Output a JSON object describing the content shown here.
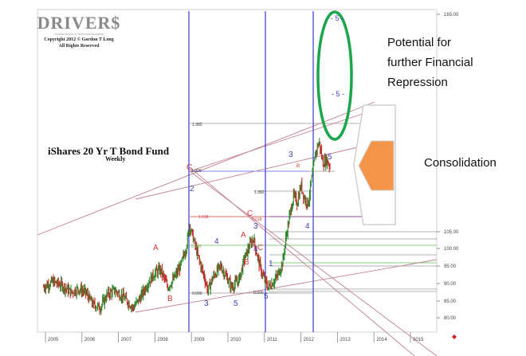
{
  "logo": {
    "title": "DRIVER$",
    "tagline": "Global Macro & Technical Analysis",
    "copyright": "Copyright 2012 © Gordon T Long",
    "rights": "All Rights Reserved"
  },
  "chart_data": {
    "type": "line",
    "title": "iShares 20 Yr T Bond Fund",
    "subtitle": "Weekly",
    "x_ticks": [
      "2005",
      "2006",
      "2007",
      "2008",
      "2009",
      "2010",
      "2011",
      "2012",
      "2013",
      "2014",
      "2015"
    ],
    "y_ticks": [
      "165.00",
      "105.00",
      "100.00",
      "95.00",
      "90.00",
      "85.00",
      "80.00"
    ],
    "y_tick_values": [
      165,
      105,
      100,
      95,
      90,
      85,
      80
    ],
    "ylim": [
      78,
      168
    ],
    "series": [
      {
        "values": [
          {
            "x": 2004.95,
            "y": 89
          },
          {
            "x": 2005.2,
            "y": 90.5
          },
          {
            "x": 2005.45,
            "y": 89.5
          },
          {
            "x": 2005.7,
            "y": 87.5
          },
          {
            "x": 2005.9,
            "y": 88.5
          },
          {
            "x": 2006.1,
            "y": 87.5
          },
          {
            "x": 2006.3,
            "y": 84
          },
          {
            "x": 2006.5,
            "y": 83
          },
          {
            "x": 2006.7,
            "y": 87
          },
          {
            "x": 2006.9,
            "y": 88
          },
          {
            "x": 2007.15,
            "y": 86
          },
          {
            "x": 2007.4,
            "y": 83
          },
          {
            "x": 2007.6,
            "y": 86
          },
          {
            "x": 2007.8,
            "y": 90
          },
          {
            "x": 2008.0,
            "y": 93
          },
          {
            "x": 2008.15,
            "y": 94
          },
          {
            "x": 2008.35,
            "y": 89
          },
          {
            "x": 2008.5,
            "y": 91
          },
          {
            "x": 2008.7,
            "y": 95
          },
          {
            "x": 2008.85,
            "y": 100
          },
          {
            "x": 2008.95,
            "y": 107
          },
          {
            "x": 2009.05,
            "y": 103
          },
          {
            "x": 2009.2,
            "y": 97
          },
          {
            "x": 2009.35,
            "y": 92
          },
          {
            "x": 2009.45,
            "y": 88
          },
          {
            "x": 2009.6,
            "y": 92
          },
          {
            "x": 2009.8,
            "y": 95
          },
          {
            "x": 2009.95,
            "y": 92
          },
          {
            "x": 2010.1,
            "y": 89
          },
          {
            "x": 2010.3,
            "y": 91
          },
          {
            "x": 2010.45,
            "y": 97
          },
          {
            "x": 2010.6,
            "y": 101
          },
          {
            "x": 2010.7,
            "y": 103
          },
          {
            "x": 2010.8,
            "y": 98
          },
          {
            "x": 2010.9,
            "y": 94
          },
          {
            "x": 2011.0,
            "y": 91
          },
          {
            "x": 2011.1,
            "y": 89
          },
          {
            "x": 2011.2,
            "y": 90
          },
          {
            "x": 2011.35,
            "y": 92
          },
          {
            "x": 2011.5,
            "y": 96
          },
          {
            "x": 2011.6,
            "y": 104
          },
          {
            "x": 2011.7,
            "y": 110
          },
          {
            "x": 2011.8,
            "y": 115
          },
          {
            "x": 2011.9,
            "y": 113
          },
          {
            "x": 2012.0,
            "y": 118
          },
          {
            "x": 2012.1,
            "y": 114
          },
          {
            "x": 2012.2,
            "y": 113
          },
          {
            "x": 2012.3,
            "y": 120
          },
          {
            "x": 2012.4,
            "y": 127
          },
          {
            "x": 2012.5,
            "y": 130
          },
          {
            "x": 2012.6,
            "y": 124
          },
          {
            "x": 2012.7,
            "y": 125
          },
          {
            "x": 2012.8,
            "y": 123
          }
        ]
      }
    ],
    "fib_labels": [
      "1.382",
      "1.000",
      "1.382",
      "1.618",
      "0.000",
      "0.000",
      "0.618",
      "0.618"
    ],
    "wave_labels_blue": [
      "3",
      "4",
      "5",
      "2",
      "1",
      "3",
      "4",
      "5",
      "3",
      "5",
      "4"
    ],
    "wave_labels_red": [
      "A",
      "B",
      "C",
      "C",
      "A",
      "B",
      "C",
      "B"
    ],
    "target_labels": [
      "- 5 -",
      "- 5 -"
    ],
    "grid": true,
    "legend": "none"
  },
  "annotations": {
    "potential_line1": "Potential for",
    "potential_line2": "further Financial",
    "potential_line3": "Repression",
    "consolidation": "Consolidation"
  },
  "colors": {
    "price_up": "#2a8a2a",
    "price_down": "#c0302a",
    "wave_blue": "#3b3fb8",
    "wave_red": "#d23a3a",
    "trend_line": "#c08090",
    "vertical": "#3a3ad0",
    "ellipse": "#1aa64a",
    "arrow_fill": "#f5954a",
    "arrow_frame": "#d9d9d9"
  }
}
